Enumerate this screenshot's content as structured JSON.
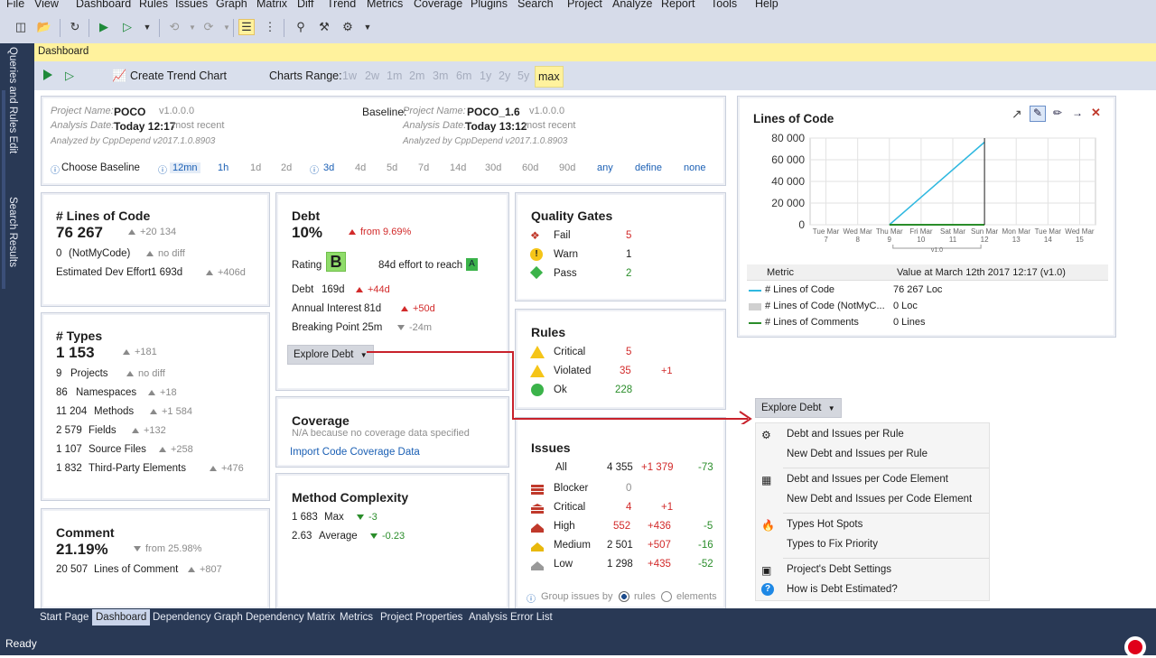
{
  "menu": [
    "File",
    "View",
    "Dashboard",
    "Rules",
    "Issues",
    "Graph",
    "Matrix",
    "Diff",
    "Trend",
    "Metrics",
    "Coverage",
    "Plugins",
    "Search",
    "Project",
    "Analyze",
    "Report",
    "Tools",
    "Help"
  ],
  "side_tabs": [
    "Queries and Rules Edit",
    "Search Results"
  ],
  "doc_tab": "Dashboard",
  "dash_toolbar": {
    "create_trend": "Create Trend Chart",
    "charts_range_label": "Charts Range:",
    "ranges": [
      "1w",
      "2w",
      "1m",
      "2m",
      "3m",
      "6m",
      "1y",
      "2y",
      "5y",
      "max"
    ],
    "selected_range": "max"
  },
  "project": {
    "name_label": "Project Name:",
    "name": "POCO",
    "version": "v1.0.0.0",
    "date_label": "Analysis Date:",
    "date": "Today 12:17",
    "date_note": "most recent",
    "analyzed_by": "Analyzed by CppDepend v2017.1.0.8903"
  },
  "baseline": {
    "label": "Baseline:",
    "name_label": "Project Name:",
    "name": "POCO_1.6",
    "version": "v1.0.0.0",
    "date_label": "Analysis Date:",
    "date": "Today 13:12",
    "date_note": "most recent",
    "analyzed_by": "Analyzed by CppDepend v2017.1.0.8903"
  },
  "choose_baseline": {
    "label": "Choose Baseline",
    "options": [
      "12mn",
      "1h",
      "1d",
      "2d",
      "3d",
      "4d",
      "5d",
      "7d",
      "14d",
      "30d",
      "60d",
      "90d",
      "any",
      "define",
      "none"
    ]
  },
  "loc": {
    "title": "# Lines of Code",
    "value": "76 267",
    "delta": "+20 134",
    "notmycode": "0",
    "notmycode_label": "(NotMyCode)",
    "notmycode_delta": "no diff",
    "effort_label": "Estimated Dev Effort",
    "effort": "1 693d",
    "effort_delta": "+406d"
  },
  "types": {
    "title": "# Types",
    "value": "1 153",
    "delta": "+181",
    "rows": [
      {
        "value": "9",
        "label": "Projects",
        "delta": "no diff"
      },
      {
        "value": "86",
        "label": "Namespaces",
        "delta": "+18"
      },
      {
        "value": "11 204",
        "label": "Methods",
        "delta": "+1 584"
      },
      {
        "value": "2 579",
        "label": "Fields",
        "delta": "+132"
      },
      {
        "value": "1 107",
        "label": "Source Files",
        "delta": "+258"
      },
      {
        "value": "1 832",
        "label": "Third-Party Elements",
        "delta": "+476"
      }
    ]
  },
  "comment": {
    "title": "Comment",
    "value": "21.19%",
    "delta": "from 25.98%",
    "lines": "20 507",
    "lines_label": "Lines of Comment",
    "lines_delta": "+807"
  },
  "debt": {
    "title": "Debt",
    "value": "10%",
    "delta": "from 9.69%",
    "rating_label": "Rating",
    "rating": "B",
    "effort_to_reach": "84d effort to reach",
    "target": "A",
    "debt_label": "Debt",
    "debt_value": "169d",
    "debt_delta": "+44d",
    "interest_label": "Annual Interest",
    "interest_value": "81d",
    "interest_delta": "+50d",
    "breaking_label": "Breaking Point",
    "breaking_value": "25m",
    "breaking_delta": "-24m",
    "explore": "Explore Debt"
  },
  "coverage": {
    "title": "Coverage",
    "note": "N/A because no coverage data specified",
    "import": "Import Code Coverage Data"
  },
  "complexity": {
    "title": "Method Complexity",
    "max": "1 683",
    "max_label": "Max",
    "max_delta": "-3",
    "avg": "2.63",
    "avg_label": "Average",
    "avg_delta": "-0.23"
  },
  "quality_gates": {
    "title": "Quality Gates",
    "rows": [
      {
        "label": "Fail",
        "value": "5"
      },
      {
        "label": "Warn",
        "value": "1"
      },
      {
        "label": "Pass",
        "value": "2"
      }
    ]
  },
  "rules": {
    "title": "Rules",
    "rows": [
      {
        "label": "Critical",
        "value": "5",
        "delta": ""
      },
      {
        "label": "Violated",
        "value": "35",
        "delta": "+1"
      },
      {
        "label": "Ok",
        "value": "228",
        "delta": ""
      }
    ]
  },
  "issues": {
    "title": "Issues",
    "rows": [
      {
        "label": "All",
        "value": "4 355",
        "delta1": "+1 379",
        "delta2": "-73"
      },
      {
        "label": "Blocker",
        "value": "0",
        "delta1": "",
        "delta2": ""
      },
      {
        "label": "Critical",
        "value": "4",
        "delta1": "+1",
        "delta2": ""
      },
      {
        "label": "High",
        "value": "552",
        "delta1": "+436",
        "delta2": "-5"
      },
      {
        "label": "Medium",
        "value": "2 501",
        "delta1": "+507",
        "delta2": "-16"
      },
      {
        "label": "Low",
        "value": "1 298",
        "delta1": "+435",
        "delta2": "-52"
      }
    ],
    "group_label": "Group issues by",
    "group_rules": "rules",
    "group_elements": "elements"
  },
  "chart": {
    "title": "Lines of Code",
    "table_header_metric": "Metric",
    "table_header_value": "Value at March 12th 2017  12:17  (v1.0)",
    "legend": [
      {
        "label": "# Lines of Code",
        "value": "76 267 Loc",
        "color": "#2fb8e0"
      },
      {
        "label": "# Lines of Code (NotMyC...",
        "value": "0 Loc",
        "color": "#d0d0d0"
      },
      {
        "label": "# Lines of Comments",
        "value": "0 Lines",
        "color": "#2a8d2a"
      }
    ],
    "marker_label": "v1.0"
  },
  "chart_data": {
    "type": "line",
    "title": "Lines of Code",
    "x": [
      "Tue Mar 7",
      "Wed Mar 8",
      "Thu Mar 9",
      "Fri Mar 10",
      "Sat Mar 11",
      "Sun Mar 12",
      "Mon Mar 13",
      "Tue Mar 14",
      "Wed Mar 15"
    ],
    "ylim": [
      0,
      80000
    ],
    "yticks": [
      "0",
      "20 000",
      "40 000",
      "60 000",
      "80 000"
    ],
    "series": [
      {
        "name": "# Lines of Code",
        "x": [
          "Thu Mar 9",
          "Sun Mar 12"
        ],
        "values": [
          0,
          76267
        ]
      },
      {
        "name": "# Lines of Code (NotMyCode)",
        "x": [
          "Thu Mar 9",
          "Sun Mar 12"
        ],
        "values": [
          0,
          0
        ]
      },
      {
        "name": "# Lines of Comments",
        "x": [
          "Thu Mar 9",
          "Sun Mar 12"
        ],
        "values": [
          0,
          0
        ]
      }
    ],
    "grid": true
  },
  "explore_menu": {
    "button": "Explore Debt",
    "items": [
      "Debt and Issues per Rule",
      "New Debt and Issues per Rule",
      "Debt and Issues per Code Element",
      "New Debt and Issues per Code Element",
      "Types Hot Spots",
      "Types to Fix Priority",
      "Project's Debt Settings",
      "How is Debt Estimated?"
    ]
  },
  "bottom_tabs": [
    "Start Page",
    "Dashboard",
    "Dependency Graph",
    "Dependency Matrix",
    "Metrics",
    "Project Properties",
    "Analysis Error List"
  ],
  "status": "Ready"
}
